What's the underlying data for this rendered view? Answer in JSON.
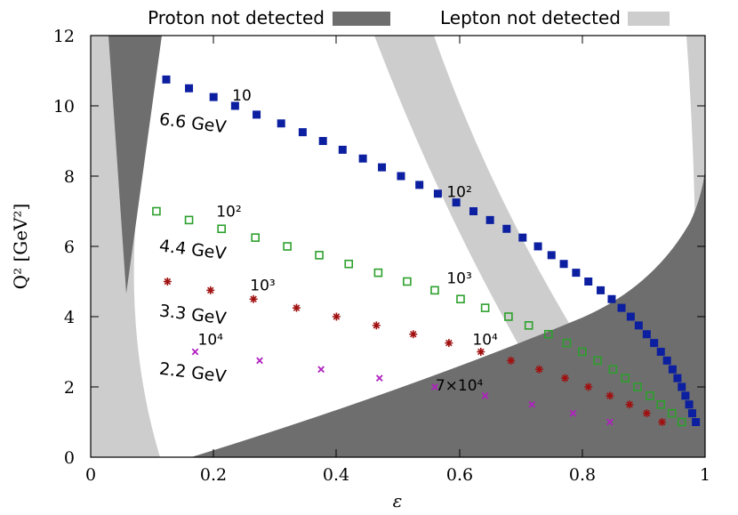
{
  "chart_data": {
    "type": "scatter",
    "xlabel": "ε",
    "ylabel": "Q² [GeV²]",
    "xlim": [
      0,
      1
    ],
    "ylim": [
      0,
      12
    ],
    "x_ticks": [
      "0",
      "0.2",
      "0.4",
      "0.6",
      "0.8",
      "1"
    ],
    "y_ticks": [
      "0",
      "2",
      "4",
      "6",
      "8",
      "10",
      "12"
    ],
    "grid": false,
    "legend_position": "top",
    "legend": [
      {
        "label": "Proton not detected",
        "color": "#6e6e6e"
      },
      {
        "label": "Lepton not detected",
        "color": "#cdcdcd"
      }
    ],
    "series": [
      {
        "energy_label": "6.6 GeV",
        "marker": "filled-square",
        "color": "#0b1fa0",
        "points": [
          [
            0.123,
            10.75
          ],
          [
            0.16,
            10.5
          ],
          [
            0.2,
            10.25
          ],
          [
            0.235,
            10.0
          ],
          [
            0.27,
            9.75
          ],
          [
            0.31,
            9.5
          ],
          [
            0.345,
            9.25
          ],
          [
            0.378,
            9.0
          ],
          [
            0.41,
            8.75
          ],
          [
            0.443,
            8.5
          ],
          [
            0.474,
            8.25
          ],
          [
            0.505,
            8.0
          ],
          [
            0.535,
            7.75
          ],
          [
            0.565,
            7.5
          ],
          [
            0.595,
            7.25
          ],
          [
            0.623,
            7.0
          ],
          [
            0.65,
            6.75
          ],
          [
            0.677,
            6.5
          ],
          [
            0.703,
            6.25
          ],
          [
            0.728,
            6.0
          ],
          [
            0.75,
            5.75
          ],
          [
            0.77,
            5.5
          ],
          [
            0.79,
            5.25
          ],
          [
            0.81,
            5.0
          ],
          [
            0.83,
            4.75
          ],
          [
            0.848,
            4.5
          ],
          [
            0.864,
            4.25
          ],
          [
            0.879,
            4.0
          ],
          [
            0.892,
            3.75
          ],
          [
            0.905,
            3.5
          ],
          [
            0.917,
            3.25
          ],
          [
            0.928,
            3.0
          ],
          [
            0.938,
            2.75
          ],
          [
            0.947,
            2.5
          ],
          [
            0.955,
            2.25
          ],
          [
            0.962,
            2.0
          ],
          [
            0.968,
            1.75
          ],
          [
            0.974,
            1.5
          ],
          [
            0.979,
            1.25
          ],
          [
            0.985,
            1.0
          ]
        ]
      },
      {
        "energy_label": "4.4 GeV",
        "marker": "open-square",
        "color": "#2ca02c",
        "points": [
          [
            0.107,
            7.0
          ],
          [
            0.16,
            6.75
          ],
          [
            0.213,
            6.5
          ],
          [
            0.268,
            6.25
          ],
          [
            0.32,
            6.0
          ],
          [
            0.372,
            5.75
          ],
          [
            0.42,
            5.5
          ],
          [
            0.468,
            5.25
          ],
          [
            0.515,
            5.0
          ],
          [
            0.56,
            4.75
          ],
          [
            0.602,
            4.5
          ],
          [
            0.642,
            4.25
          ],
          [
            0.68,
            4.0
          ],
          [
            0.713,
            3.75
          ],
          [
            0.745,
            3.5
          ],
          [
            0.775,
            3.25
          ],
          [
            0.8,
            3.0
          ],
          [
            0.825,
            2.75
          ],
          [
            0.85,
            2.5
          ],
          [
            0.87,
            2.25
          ],
          [
            0.89,
            2.0
          ],
          [
            0.91,
            1.75
          ],
          [
            0.928,
            1.5
          ],
          [
            0.946,
            1.25
          ],
          [
            0.962,
            1.0
          ]
        ]
      },
      {
        "energy_label": "3.3 GeV",
        "marker": "star",
        "color": "#a01010",
        "points": [
          [
            0.125,
            5.0
          ],
          [
            0.195,
            4.75
          ],
          [
            0.265,
            4.5
          ],
          [
            0.335,
            4.25
          ],
          [
            0.4,
            4.0
          ],
          [
            0.465,
            3.75
          ],
          [
            0.525,
            3.5
          ],
          [
            0.583,
            3.25
          ],
          [
            0.635,
            3.0
          ],
          [
            0.684,
            2.75
          ],
          [
            0.73,
            2.5
          ],
          [
            0.772,
            2.25
          ],
          [
            0.81,
            2.0
          ],
          [
            0.845,
            1.75
          ],
          [
            0.877,
            1.5
          ],
          [
            0.905,
            1.25
          ],
          [
            0.93,
            1.0
          ]
        ]
      },
      {
        "energy_label": "2.2 GeV",
        "marker": "cross",
        "color": "#b020c0",
        "points": [
          [
            0.17,
            3.0
          ],
          [
            0.275,
            2.75
          ],
          [
            0.375,
            2.5
          ],
          [
            0.47,
            2.25
          ],
          [
            0.56,
            2.0
          ],
          [
            0.642,
            1.75
          ],
          [
            0.718,
            1.5
          ],
          [
            0.785,
            1.25
          ],
          [
            0.845,
            1.0
          ]
        ]
      }
    ],
    "count_annotations": [
      {
        "text": "10",
        "eps": 0.246,
        "q2": 10.15
      },
      {
        "text": "10²",
        "eps": 0.225,
        "q2": 6.85
      },
      {
        "text": "10³",
        "eps": 0.28,
        "q2": 4.75
      },
      {
        "text": "10⁴",
        "eps": 0.195,
        "q2": 3.2
      },
      {
        "text": "10²",
        "eps": 0.6,
        "q2": 7.4
      },
      {
        "text": "10³",
        "eps": 0.6,
        "q2": 4.95
      },
      {
        "text": "10⁴",
        "eps": 0.642,
        "q2": 3.2
      },
      {
        "text": "7×10⁴",
        "eps": 0.6,
        "q2": 1.9
      }
    ],
    "energy_labels": [
      {
        "text": "6.6 GeV",
        "eps": 0.165,
        "q2": 9.35
      },
      {
        "text": "4.4 GeV",
        "eps": 0.165,
        "q2": 5.75
      },
      {
        "text": "3.3 GeV",
        "eps": 0.165,
        "q2": 3.9
      },
      {
        "text": "2.2 GeV",
        "eps": 0.165,
        "q2": 2.25
      }
    ]
  }
}
